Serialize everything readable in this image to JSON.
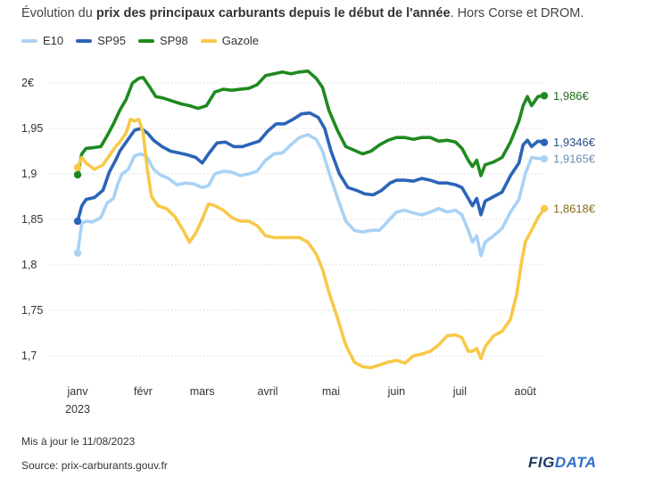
{
  "header": {
    "title_prefix": "Évolution du ",
    "title_bold": "prix des principaux carburants depuis le début de l'année",
    "title_suffix": ". Hors Corse et DROM."
  },
  "footer": {
    "updated": "Mis à jour le 11/08/2023",
    "source": "Source: prix-carburants.gouv.fr"
  },
  "logo": {
    "fig": "FIG",
    "data": "DATA"
  },
  "colors": {
    "E10": "#a9d2f5",
    "SP95": "#2b64b8",
    "SP98": "#1e8a1e",
    "Gazole": "#f7c948"
  },
  "chart_data": {
    "type": "line",
    "title": "Évolution du prix des principaux carburants depuis le début de l'année. Hors Corse et DROM.",
    "xlabel": "",
    "ylabel": "",
    "x_range": [
      1,
      222
    ],
    "x_unit": "day of year 2023",
    "ylim": [
      1.68,
      2.02
    ],
    "yticks": [
      1.7,
      1.75,
      1.8,
      1.85,
      1.9,
      1.95,
      2.0
    ],
    "ytick_labels": [
      "1,7",
      "1,75",
      "1,8",
      "1,85",
      "1,9",
      "1,95",
      "2€"
    ],
    "xticks": [
      {
        "x": 1,
        "label": "janv",
        "sub": "2023"
      },
      {
        "x": 32,
        "label": "févr",
        "sub": ""
      },
      {
        "x": 60,
        "label": "mars",
        "sub": ""
      },
      {
        "x": 91,
        "label": "avril",
        "sub": ""
      },
      {
        "x": 121,
        "label": "mai",
        "sub": ""
      },
      {
        "x": 152,
        "label": "juin",
        "sub": ""
      },
      {
        "x": 182,
        "label": "juil",
        "sub": ""
      },
      {
        "x": 213,
        "label": "août",
        "sub": ""
      }
    ],
    "grid": true,
    "legend": [
      "E10",
      "SP95",
      "SP98",
      "Gazole"
    ],
    "legend_position": "top-left",
    "series": [
      {
        "name": "E10",
        "end_label": "1,9165€",
        "points": [
          [
            1,
            1.813
          ],
          [
            3,
            1.846
          ],
          [
            5,
            1.848
          ],
          [
            8,
            1.847
          ],
          [
            12,
            1.852
          ],
          [
            15,
            1.868
          ],
          [
            18,
            1.873
          ],
          [
            20,
            1.889
          ],
          [
            22,
            1.9
          ],
          [
            25,
            1.905
          ],
          [
            28,
            1.92
          ],
          [
            31,
            1.922
          ],
          [
            34,
            1.918
          ],
          [
            37,
            1.905
          ],
          [
            40,
            1.899
          ],
          [
            44,
            1.895
          ],
          [
            48,
            1.888
          ],
          [
            52,
            1.89
          ],
          [
            56,
            1.889
          ],
          [
            60,
            1.885
          ],
          [
            63,
            1.887
          ],
          [
            66,
            1.9
          ],
          [
            70,
            1.903
          ],
          [
            74,
            1.902
          ],
          [
            78,
            1.898
          ],
          [
            82,
            1.9
          ],
          [
            86,
            1.903
          ],
          [
            90,
            1.915
          ],
          [
            94,
            1.922
          ],
          [
            98,
            1.923
          ],
          [
            102,
            1.932
          ],
          [
            106,
            1.94
          ],
          [
            110,
            1.943
          ],
          [
            114,
            1.938
          ],
          [
            117,
            1.925
          ],
          [
            120,
            1.902
          ],
          [
            124,
            1.874
          ],
          [
            128,
            1.848
          ],
          [
            132,
            1.838
          ],
          [
            136,
            1.836
          ],
          [
            140,
            1.838
          ],
          [
            144,
            1.838
          ],
          [
            148,
            1.848
          ],
          [
            152,
            1.858
          ],
          [
            156,
            1.86
          ],
          [
            160,
            1.857
          ],
          [
            164,
            1.855
          ],
          [
            168,
            1.858
          ],
          [
            172,
            1.862
          ],
          [
            176,
            1.858
          ],
          [
            180,
            1.86
          ],
          [
            183,
            1.855
          ],
          [
            186,
            1.838
          ],
          [
            188,
            1.825
          ],
          [
            190,
            1.832
          ],
          [
            192,
            1.81
          ],
          [
            194,
            1.825
          ],
          [
            198,
            1.832
          ],
          [
            202,
            1.84
          ],
          [
            206,
            1.858
          ],
          [
            210,
            1.872
          ],
          [
            213,
            1.9
          ],
          [
            216,
            1.918
          ],
          [
            219,
            1.917
          ],
          [
            222,
            1.9165
          ]
        ]
      },
      {
        "name": "SP95",
        "end_label": "1,9346€",
        "points": [
          [
            1,
            1.848
          ],
          [
            3,
            1.865
          ],
          [
            5,
            1.872
          ],
          [
            9,
            1.874
          ],
          [
            13,
            1.882
          ],
          [
            16,
            1.902
          ],
          [
            19,
            1.915
          ],
          [
            21,
            1.925
          ],
          [
            24,
            1.935
          ],
          [
            28,
            1.948
          ],
          [
            31,
            1.95
          ],
          [
            34,
            1.945
          ],
          [
            37,
            1.937
          ],
          [
            41,
            1.93
          ],
          [
            45,
            1.925
          ],
          [
            49,
            1.923
          ],
          [
            53,
            1.921
          ],
          [
            57,
            1.918
          ],
          [
            60,
            1.912
          ],
          [
            63,
            1.922
          ],
          [
            67,
            1.934
          ],
          [
            71,
            1.935
          ],
          [
            75,
            1.93
          ],
          [
            79,
            1.93
          ],
          [
            83,
            1.933
          ],
          [
            87,
            1.936
          ],
          [
            91,
            1.947
          ],
          [
            95,
            1.955
          ],
          [
            99,
            1.955
          ],
          [
            103,
            1.96
          ],
          [
            107,
            1.966
          ],
          [
            111,
            1.967
          ],
          [
            115,
            1.962
          ],
          [
            118,
            1.95
          ],
          [
            121,
            1.925
          ],
          [
            125,
            1.9
          ],
          [
            129,
            1.885
          ],
          [
            133,
            1.882
          ],
          [
            137,
            1.878
          ],
          [
            141,
            1.877
          ],
          [
            145,
            1.882
          ],
          [
            149,
            1.89
          ],
          [
            152,
            1.893
          ],
          [
            156,
            1.893
          ],
          [
            160,
            1.892
          ],
          [
            164,
            1.895
          ],
          [
            168,
            1.893
          ],
          [
            172,
            1.89
          ],
          [
            176,
            1.89
          ],
          [
            180,
            1.888
          ],
          [
            183,
            1.885
          ],
          [
            186,
            1.873
          ],
          [
            188,
            1.865
          ],
          [
            190,
            1.873
          ],
          [
            192,
            1.855
          ],
          [
            194,
            1.87
          ],
          [
            198,
            1.875
          ],
          [
            202,
            1.88
          ],
          [
            206,
            1.898
          ],
          [
            210,
            1.912
          ],
          [
            212,
            1.932
          ],
          [
            214,
            1.937
          ],
          [
            216,
            1.93
          ],
          [
            219,
            1.936
          ],
          [
            222,
            1.9346
          ]
        ]
      },
      {
        "name": "SP98",
        "end_label": "1,986€",
        "points": [
          [
            1,
            1.899
          ],
          [
            3,
            1.922
          ],
          [
            5,
            1.928
          ],
          [
            9,
            1.929
          ],
          [
            12,
            1.93
          ],
          [
            15,
            1.942
          ],
          [
            18,
            1.955
          ],
          [
            21,
            1.97
          ],
          [
            24,
            1.982
          ],
          [
            27,
            2.0
          ],
          [
            30,
            2.005
          ],
          [
            32,
            2.006
          ],
          [
            35,
            1.996
          ],
          [
            38,
            1.985
          ],
          [
            42,
            1.983
          ],
          [
            46,
            1.98
          ],
          [
            50,
            1.977
          ],
          [
            54,
            1.975
          ],
          [
            58,
            1.972
          ],
          [
            62,
            1.975
          ],
          [
            66,
            1.99
          ],
          [
            70,
            1.993
          ],
          [
            74,
            1.992
          ],
          [
            78,
            1.993
          ],
          [
            82,
            1.994
          ],
          [
            86,
            1.998
          ],
          [
            90,
            2.008
          ],
          [
            94,
            2.01
          ],
          [
            98,
            2.012
          ],
          [
            102,
            2.01
          ],
          [
            106,
            2.012
          ],
          [
            110,
            2.013
          ],
          [
            114,
            2.005
          ],
          [
            117,
            1.995
          ],
          [
            120,
            1.97
          ],
          [
            124,
            1.948
          ],
          [
            128,
            1.93
          ],
          [
            132,
            1.926
          ],
          [
            136,
            1.922
          ],
          [
            140,
            1.925
          ],
          [
            144,
            1.932
          ],
          [
            148,
            1.937
          ],
          [
            152,
            1.94
          ],
          [
            156,
            1.94
          ],
          [
            160,
            1.938
          ],
          [
            164,
            1.94
          ],
          [
            168,
            1.94
          ],
          [
            172,
            1.936
          ],
          [
            176,
            1.937
          ],
          [
            180,
            1.935
          ],
          [
            183,
            1.928
          ],
          [
            186,
            1.915
          ],
          [
            188,
            1.908
          ],
          [
            190,
            1.915
          ],
          [
            192,
            1.898
          ],
          [
            194,
            1.91
          ],
          [
            198,
            1.913
          ],
          [
            202,
            1.918
          ],
          [
            206,
            1.935
          ],
          [
            210,
            1.958
          ],
          [
            212,
            1.975
          ],
          [
            214,
            1.985
          ],
          [
            216,
            1.975
          ],
          [
            219,
            1.985
          ],
          [
            222,
            1.986
          ]
        ]
      },
      {
        "name": "Gazole",
        "end_label": "1,8618€",
        "points": [
          [
            1,
            1.907
          ],
          [
            3,
            1.918
          ],
          [
            5,
            1.912
          ],
          [
            9,
            1.905
          ],
          [
            13,
            1.91
          ],
          [
            16,
            1.92
          ],
          [
            19,
            1.93
          ],
          [
            21,
            1.935
          ],
          [
            24,
            1.945
          ],
          [
            26,
            1.96
          ],
          [
            28,
            1.958
          ],
          [
            30,
            1.96
          ],
          [
            32,
            1.945
          ],
          [
            34,
            1.905
          ],
          [
            36,
            1.875
          ],
          [
            39,
            1.865
          ],
          [
            43,
            1.862
          ],
          [
            47,
            1.853
          ],
          [
            51,
            1.838
          ],
          [
            54,
            1.825
          ],
          [
            57,
            1.835
          ],
          [
            60,
            1.85
          ],
          [
            63,
            1.867
          ],
          [
            66,
            1.865
          ],
          [
            70,
            1.86
          ],
          [
            74,
            1.852
          ],
          [
            78,
            1.848
          ],
          [
            82,
            1.848
          ],
          [
            86,
            1.843
          ],
          [
            90,
            1.832
          ],
          [
            94,
            1.83
          ],
          [
            98,
            1.83
          ],
          [
            102,
            1.83
          ],
          [
            106,
            1.83
          ],
          [
            110,
            1.825
          ],
          [
            114,
            1.812
          ],
          [
            117,
            1.795
          ],
          [
            120,
            1.77
          ],
          [
            124,
            1.742
          ],
          [
            128,
            1.712
          ],
          [
            132,
            1.693
          ],
          [
            136,
            1.688
          ],
          [
            140,
            1.687
          ],
          [
            144,
            1.69
          ],
          [
            148,
            1.693
          ],
          [
            152,
            1.695
          ],
          [
            156,
            1.692
          ],
          [
            160,
            1.7
          ],
          [
            164,
            1.702
          ],
          [
            168,
            1.705
          ],
          [
            172,
            1.712
          ],
          [
            176,
            1.722
          ],
          [
            180,
            1.723
          ],
          [
            183,
            1.72
          ],
          [
            186,
            1.705
          ],
          [
            188,
            1.705
          ],
          [
            190,
            1.708
          ],
          [
            192,
            1.697
          ],
          [
            194,
            1.71
          ],
          [
            198,
            1.722
          ],
          [
            202,
            1.727
          ],
          [
            206,
            1.74
          ],
          [
            209,
            1.768
          ],
          [
            211,
            1.8
          ],
          [
            213,
            1.825
          ],
          [
            216,
            1.838
          ],
          [
            219,
            1.852
          ],
          [
            222,
            1.8618
          ]
        ]
      }
    ]
  }
}
